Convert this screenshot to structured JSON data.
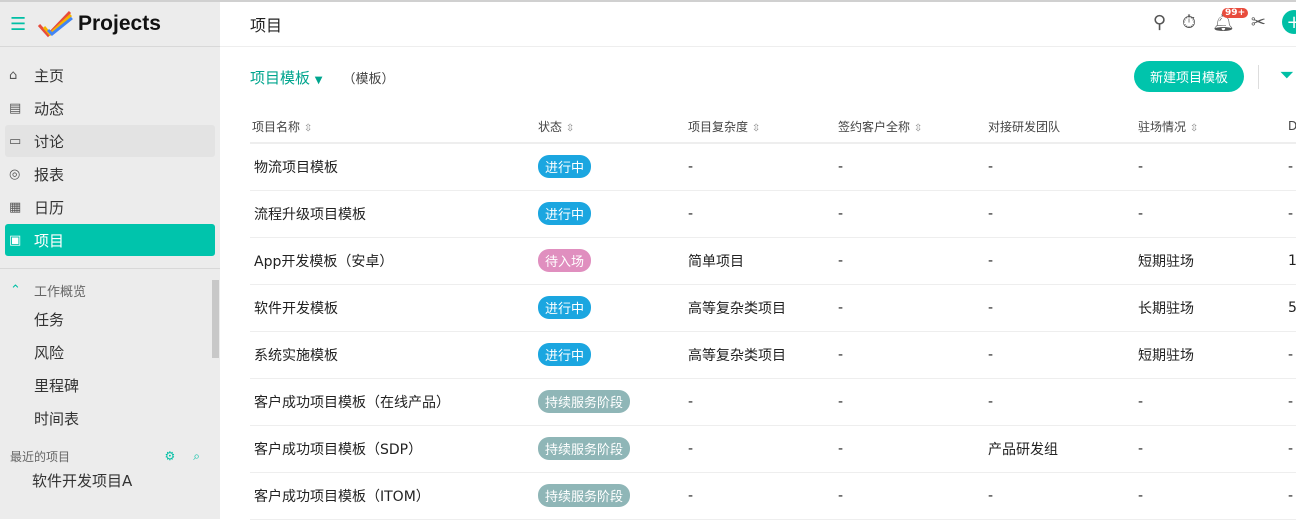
{
  "app": {
    "name": "Projects",
    "menu_icon": "hamburger-icon",
    "logo": "projects-checkmark-logo"
  },
  "sidebar": {
    "items": [
      {
        "label": "主页",
        "icon": "home-icon"
      },
      {
        "label": "动态",
        "icon": "feed-icon"
      },
      {
        "label": "讨论",
        "icon": "discussion-icon"
      },
      {
        "label": "报表",
        "icon": "report-icon"
      },
      {
        "label": "日历",
        "icon": "calendar-icon"
      },
      {
        "label": "项目",
        "icon": "project-icon",
        "active": true
      }
    ],
    "overview": {
      "label": "工作概览",
      "items": [
        "任务",
        "风险",
        "里程碑",
        "时间表"
      ]
    },
    "recent": {
      "label": "最近的项目",
      "items": [
        "软件开发项目A"
      ]
    }
  },
  "header": {
    "title": "项目",
    "notification_count": "99+"
  },
  "toolbar": {
    "view": "项目模板",
    "view_sub": "（模板）",
    "new_button": "新建项目模板"
  },
  "colors": {
    "accent": "#00c4ac",
    "in_progress": "#1ba6e0",
    "pending": "#e08fbf",
    "service": "#8fb6b7"
  },
  "table": {
    "columns": [
      "项目名称",
      "状态",
      "项目复杂度",
      "签约客户全称",
      "对接研发团队",
      "驻场情况",
      "D"
    ],
    "rows": [
      {
        "name": "物流项目模板",
        "status": "进行中",
        "status_type": "in_progress",
        "complexity": "-",
        "client": "-",
        "team": "-",
        "onsite": "-",
        "d": "-"
      },
      {
        "name": "流程升级项目模板",
        "status": "进行中",
        "status_type": "in_progress",
        "complexity": "-",
        "client": "-",
        "team": "-",
        "onsite": "-",
        "d": "-"
      },
      {
        "name": "App开发模板（安卓）",
        "status": "待入场",
        "status_type": "pending",
        "complexity": "简单项目",
        "client": "-",
        "team": "-",
        "onsite": "短期驻场",
        "d": "1"
      },
      {
        "name": "软件开发模板",
        "status": "进行中",
        "status_type": "in_progress",
        "complexity": "高等复杂类项目",
        "client": "-",
        "team": "-",
        "onsite": "长期驻场",
        "d": "5"
      },
      {
        "name": "系统实施模板",
        "status": "进行中",
        "status_type": "in_progress",
        "complexity": "高等复杂类项目",
        "client": "-",
        "team": "-",
        "onsite": "短期驻场",
        "d": "-"
      },
      {
        "name": "客户成功项目模板（在线产品）",
        "status": "持续服务阶段",
        "status_type": "service",
        "complexity": "-",
        "client": "-",
        "team": "-",
        "onsite": "-",
        "d": "-"
      },
      {
        "name": "客户成功项目模板（SDP）",
        "status": "持续服务阶段",
        "status_type": "service",
        "complexity": "-",
        "client": "-",
        "team": "产品研发组",
        "onsite": "-",
        "d": "-"
      },
      {
        "name": "客户成功项目模板（ITOM）",
        "status": "持续服务阶段",
        "status_type": "service",
        "complexity": "-",
        "client": "-",
        "team": "-",
        "onsite": "-",
        "d": "-"
      }
    ]
  }
}
